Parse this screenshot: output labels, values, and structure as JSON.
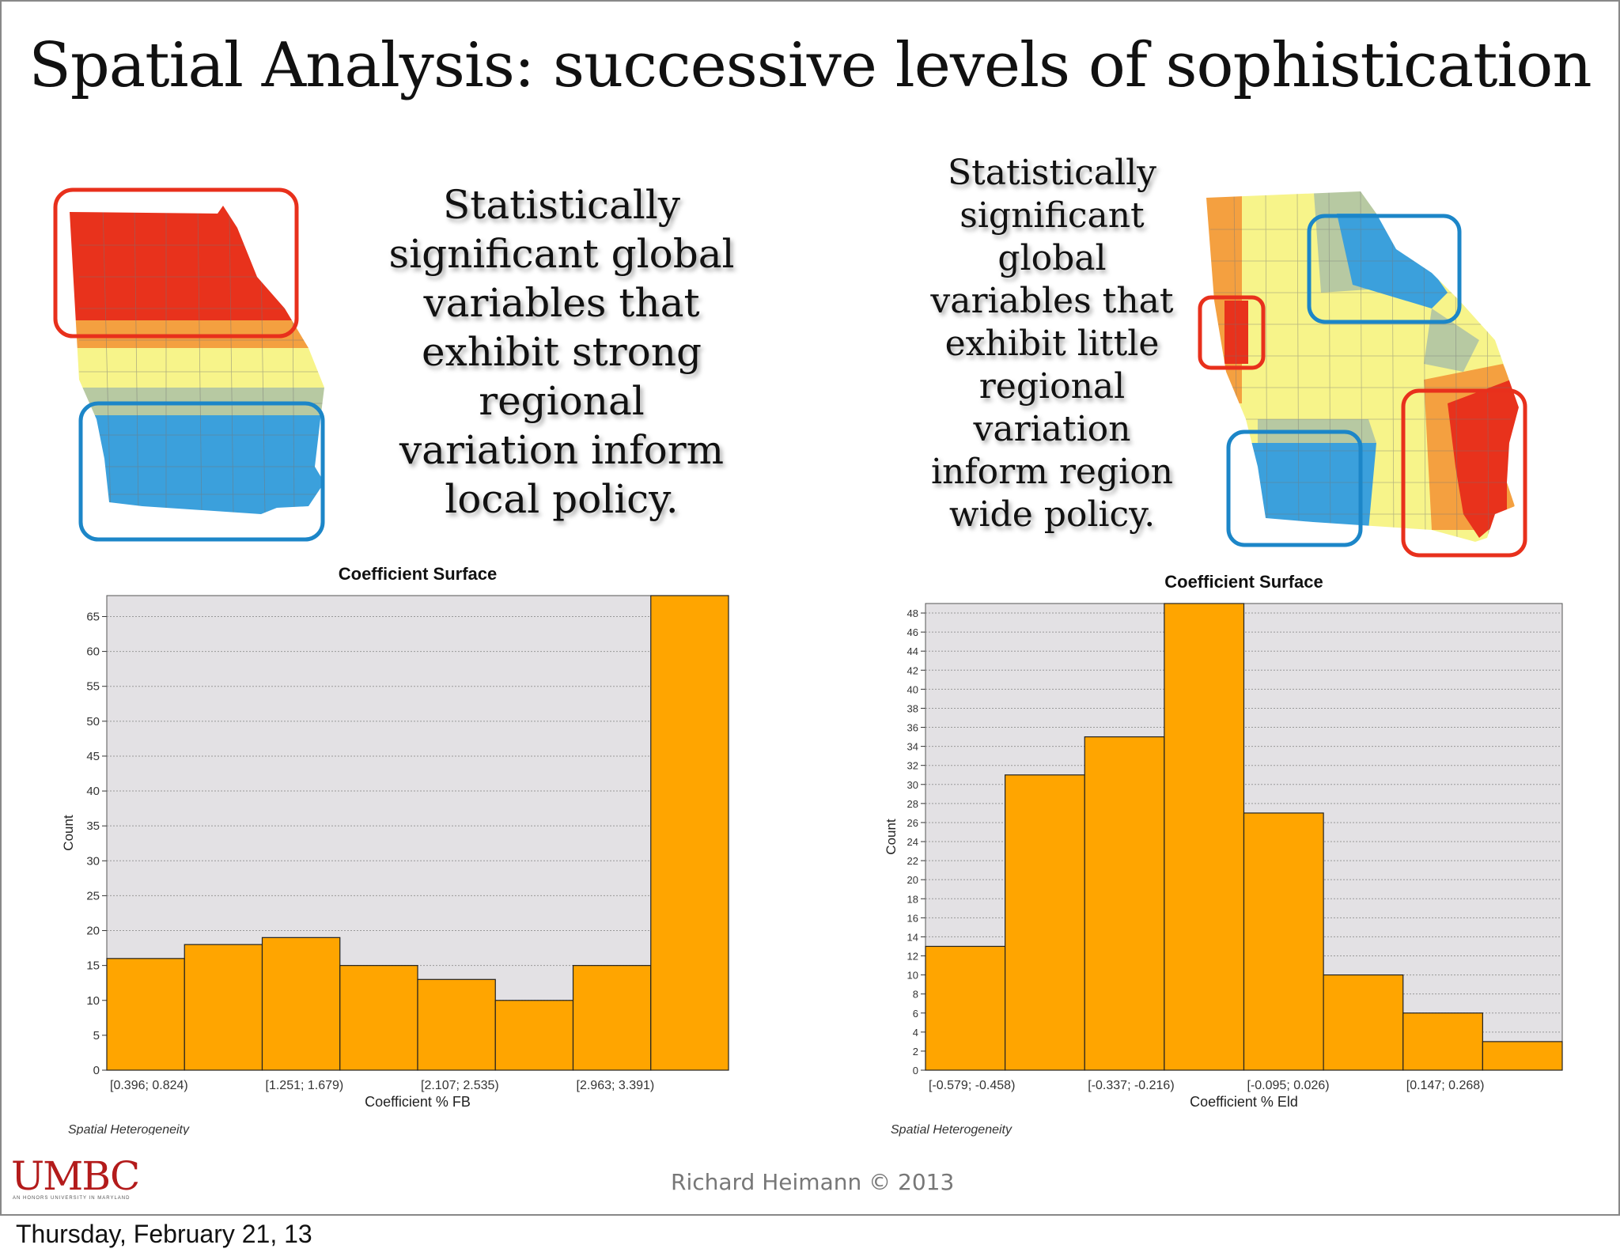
{
  "slide": {
    "title": "Spatial Analysis: successive levels of sophistication",
    "left_claim": [
      "Statistically",
      "significant global",
      "variables that",
      "exhibit strong",
      "regional",
      "variation inform",
      "local policy."
    ],
    "right_claim": [
      "Statistically",
      "significant",
      "global",
      "variables that",
      "exhibit little",
      "regional",
      "variation",
      "inform region",
      "wide policy."
    ],
    "logo": "UMBC",
    "logo_sub": "AN HONORS UNIVERSITY IN MARYLAND",
    "credit": "Richard Heimann © 2013",
    "date": "Thursday, February 21, 13",
    "bar_color": "#FFA500",
    "map_colors": {
      "red": "#E8301C",
      "orange": "#F4A040",
      "yellow": "#F7F48A",
      "green": "#B7C9A2",
      "blue": "#3AA0DC",
      "box_red": "#E8301C",
      "box_blue": "#1C86C8"
    }
  },
  "chart_data": [
    {
      "type": "bar",
      "title": "Coefficient Surface",
      "xlabel": "Coefficient % FB",
      "ylabel": "Count",
      "footnote": "Spatial Heterogeneity",
      "categories": [
        "[0.396; 0.824)",
        "",
        "[1.251; 1.679)",
        "",
        "[2.107; 2.535)",
        "",
        "[2.963; 3.391)",
        ""
      ],
      "values": [
        16,
        18,
        19,
        15,
        13,
        10,
        15,
        68
      ],
      "ylim": [
        0,
        68
      ],
      "yticks": [
        0,
        5,
        10,
        15,
        20,
        25,
        30,
        35,
        40,
        45,
        50,
        55,
        60,
        65
      ],
      "grid": true
    },
    {
      "type": "bar",
      "title": "Coefficient Surface",
      "xlabel": "Coefficient % Eld",
      "ylabel": "Count",
      "footnote": "Spatial Heterogeneity",
      "categories": [
        "[-0.579; -0.458)",
        "",
        "[-0.337; -0.216)",
        "",
        "[-0.095; 0.026)",
        "",
        "[0.147; 0.268)",
        ""
      ],
      "values": [
        13,
        31,
        35,
        49,
        27,
        10,
        6,
        3
      ],
      "ylim": [
        0,
        49
      ],
      "yticks": [
        0,
        2,
        4,
        6,
        8,
        10,
        12,
        14,
        16,
        18,
        20,
        22,
        24,
        26,
        28,
        30,
        32,
        34,
        36,
        38,
        40,
        42,
        44,
        46,
        48
      ],
      "grid": true
    }
  ]
}
